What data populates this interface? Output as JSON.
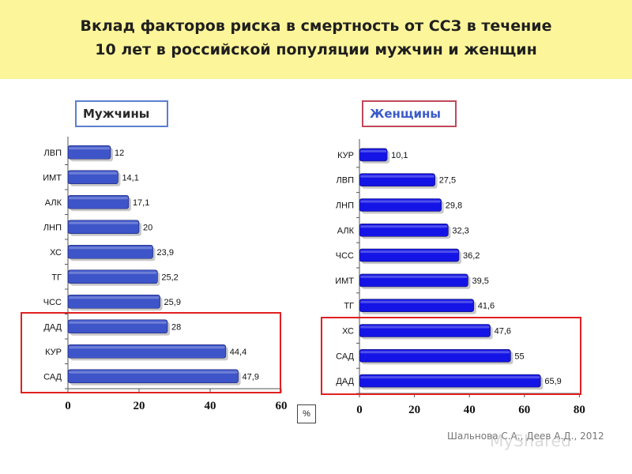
{
  "title_line1": "Вклад факторов риска в смертность от ССЗ в течение",
  "title_line2": "10 лет в российской популяции мужчин и женщин",
  "unit_label": "%",
  "source": "Шальнова С.А., Деев А.Д., 2012",
  "watermark": "MyShared",
  "colors": {
    "men_bar": "#3d55c8",
    "women_bar": "#1414e6",
    "highlight_box": "#e02020",
    "title_bg": "#fdf59a"
  },
  "chart_data": [
    {
      "type": "bar",
      "orientation": "horizontal",
      "title": "Мужчины",
      "categories": [
        "ЛВП",
        "ИМТ",
        "АЛК",
        "ЛНП",
        "ХС",
        "ТГ",
        "ЧСС",
        "ДАД",
        "КУР",
        "САД"
      ],
      "values": [
        12,
        14.1,
        17.1,
        20,
        23.9,
        25.2,
        25.9,
        28,
        44.4,
        47.9
      ],
      "value_labels": [
        "12",
        "14,1",
        "17,1",
        "20",
        "23,9",
        "25,2",
        "25,9",
        "28",
        "44,4",
        "47,9"
      ],
      "xlim": [
        0,
        60
      ],
      "xticks": [
        0,
        20,
        40,
        60
      ],
      "highlighted_categories": [
        "ДАД",
        "КУР",
        "САД"
      ]
    },
    {
      "type": "bar",
      "orientation": "horizontal",
      "title": "Женщины",
      "categories": [
        "КУР",
        "ЛВП",
        "ЛНП",
        "АЛК",
        "ЧСС",
        "ИМТ",
        "ТГ",
        "ХС",
        "САД",
        "ДАД"
      ],
      "values": [
        10.1,
        27.5,
        29.8,
        32.3,
        36.2,
        39.5,
        41.6,
        47.6,
        55,
        65.9
      ],
      "value_labels": [
        "10,1",
        "27,5",
        "29,8",
        "32,3",
        "36,2",
        "39,5",
        "41,6",
        "47,6",
        "55",
        "65,9"
      ],
      "xlim": [
        0,
        80
      ],
      "xticks": [
        0,
        20,
        40,
        60,
        80
      ],
      "highlighted_categories": [
        "ХС",
        "САД",
        "ДАД"
      ]
    }
  ]
}
